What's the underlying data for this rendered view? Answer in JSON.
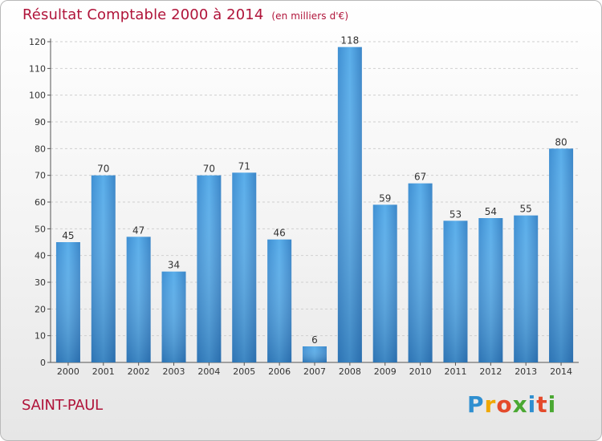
{
  "chart_data": {
    "type": "bar",
    "title": "Résultat Comptable 2000 à 2014",
    "subtitle": "(en milliers d'€)",
    "categories": [
      "2000",
      "2001",
      "2002",
      "2003",
      "2004",
      "2005",
      "2006",
      "2007",
      "2008",
      "2009",
      "2010",
      "2011",
      "2012",
      "2013",
      "2014"
    ],
    "values": [
      45,
      70,
      47,
      34,
      70,
      71,
      46,
      6,
      118,
      59,
      67,
      53,
      54,
      55,
      80
    ],
    "ylim": [
      0,
      120
    ],
    "yticks": [
      0,
      10,
      20,
      30,
      40,
      50,
      60,
      70,
      80,
      90,
      100,
      110,
      120
    ],
    "xlabel": "",
    "ylabel": "",
    "grid": true,
    "bar_color": "#4a9bd9"
  },
  "place_name": "SAINT-PAUL",
  "logo": {
    "letters": [
      "P",
      "r",
      "o",
      "x",
      "i",
      "t",
      "i"
    ],
    "colors": [
      "#2f8fd0",
      "#f0a800",
      "#e44a2b",
      "#4aa832",
      "#2f8fd0",
      "#e44a2b",
      "#4aa832"
    ]
  },
  "colors": {
    "accent": "#b0143a"
  }
}
